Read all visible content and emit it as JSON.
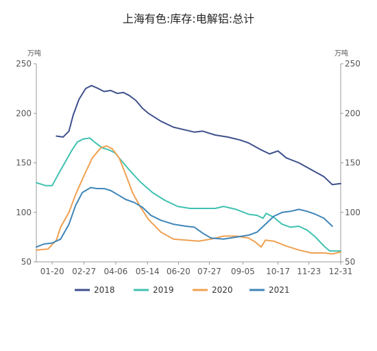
{
  "chart_data": {
    "type": "line",
    "title": "上海有色:库存:电解铝:总计",
    "y_unit_left": "万吨",
    "y_unit_right": "万吨",
    "ylim": [
      50,
      250
    ],
    "yticks": [
      50,
      100,
      150,
      200,
      250
    ],
    "x_day_range": [
      1,
      365
    ],
    "x_ticks": [
      "01-20",
      "02-27",
      "04-06",
      "05-14",
      "06-20",
      "07-27",
      "09-05",
      "10-17",
      "11-23",
      "12-31"
    ],
    "x_tick_days": [
      20,
      58,
      96,
      134,
      171,
      208,
      248,
      290,
      327,
      365
    ],
    "grid": false,
    "legend_position": "bottom",
    "colors": {
      "2018": "#3d4f8c",
      "2019": "#3fc1b0",
      "2020": "#f0a050",
      "2021": "#3d85b8"
    },
    "series": [
      {
        "name": "2018",
        "points": [
          [
            25,
            177
          ],
          [
            33,
            176
          ],
          [
            40,
            182
          ],
          [
            45,
            198
          ],
          [
            52,
            214
          ],
          [
            60,
            225
          ],
          [
            67,
            228
          ],
          [
            75,
            225
          ],
          [
            82,
            222
          ],
          [
            90,
            223
          ],
          [
            98,
            220
          ],
          [
            105,
            221
          ],
          [
            112,
            218
          ],
          [
            120,
            213
          ],
          [
            128,
            205
          ],
          [
            135,
            200
          ],
          [
            150,
            192
          ],
          [
            165,
            186
          ],
          [
            180,
            183
          ],
          [
            190,
            181
          ],
          [
            200,
            182
          ],
          [
            215,
            178
          ],
          [
            230,
            176
          ],
          [
            245,
            173
          ],
          [
            255,
            170
          ],
          [
            270,
            163
          ],
          [
            280,
            159
          ],
          [
            290,
            162
          ],
          [
            300,
            155
          ],
          [
            315,
            150
          ],
          [
            330,
            143
          ],
          [
            345,
            136
          ],
          [
            355,
            128
          ],
          [
            365,
            129
          ]
        ]
      },
      {
        "name": "2019",
        "points": [
          [
            1,
            130
          ],
          [
            12,
            127
          ],
          [
            20,
            127
          ],
          [
            27,
            138
          ],
          [
            35,
            150
          ],
          [
            43,
            162
          ],
          [
            50,
            171
          ],
          [
            57,
            174
          ],
          [
            65,
            175
          ],
          [
            72,
            170
          ],
          [
            80,
            165
          ],
          [
            88,
            163
          ],
          [
            95,
            160
          ],
          [
            103,
            152
          ],
          [
            112,
            143
          ],
          [
            125,
            131
          ],
          [
            140,
            120
          ],
          [
            155,
            112
          ],
          [
            170,
            106
          ],
          [
            185,
            104
          ],
          [
            200,
            104
          ],
          [
            215,
            104
          ],
          [
            225,
            106
          ],
          [
            240,
            103
          ],
          [
            255,
            98
          ],
          [
            265,
            97
          ],
          [
            272,
            94
          ],
          [
            276,
            99
          ],
          [
            285,
            95
          ],
          [
            295,
            88
          ],
          [
            305,
            85
          ],
          [
            315,
            86
          ],
          [
            325,
            82
          ],
          [
            335,
            75
          ],
          [
            345,
            66
          ],
          [
            352,
            61
          ],
          [
            365,
            61
          ]
        ]
      },
      {
        "name": "2020",
        "points": [
          [
            1,
            62
          ],
          [
            15,
            63
          ],
          [
            25,
            72
          ],
          [
            30,
            85
          ],
          [
            40,
            100
          ],
          [
            48,
            118
          ],
          [
            58,
            137
          ],
          [
            68,
            155
          ],
          [
            78,
            165
          ],
          [
            85,
            167
          ],
          [
            92,
            164
          ],
          [
            100,
            155
          ],
          [
            108,
            138
          ],
          [
            116,
            120
          ],
          [
            125,
            106
          ],
          [
            135,
            93
          ],
          [
            150,
            80
          ],
          [
            165,
            73
          ],
          [
            180,
            72
          ],
          [
            195,
            71
          ],
          [
            210,
            73
          ],
          [
            225,
            76
          ],
          [
            240,
            76
          ],
          [
            255,
            74
          ],
          [
            263,
            70
          ],
          [
            270,
            65
          ],
          [
            275,
            72
          ],
          [
            285,
            71
          ],
          [
            300,
            66
          ],
          [
            315,
            62
          ],
          [
            330,
            59
          ],
          [
            345,
            59
          ],
          [
            355,
            58
          ],
          [
            365,
            60
          ]
        ]
      },
      {
        "name": "2021",
        "points": [
          [
            1,
            65
          ],
          [
            10,
            68
          ],
          [
            20,
            69
          ],
          [
            30,
            73
          ],
          [
            40,
            88
          ],
          [
            48,
            107
          ],
          [
            56,
            120
          ],
          [
            66,
            125
          ],
          [
            74,
            124
          ],
          [
            82,
            124
          ],
          [
            90,
            122
          ],
          [
            98,
            118
          ],
          [
            108,
            113
          ],
          [
            118,
            110
          ],
          [
            128,
            105
          ],
          [
            138,
            97
          ],
          [
            150,
            92
          ],
          [
            165,
            88
          ],
          [
            180,
            86
          ],
          [
            190,
            85
          ],
          [
            200,
            79
          ],
          [
            210,
            74
          ],
          [
            225,
            73
          ],
          [
            240,
            75
          ],
          [
            255,
            77
          ],
          [
            265,
            80
          ],
          [
            275,
            88
          ],
          [
            285,
            96
          ],
          [
            295,
            100
          ],
          [
            305,
            101
          ],
          [
            315,
            103
          ],
          [
            325,
            101
          ],
          [
            335,
            98
          ],
          [
            345,
            94
          ],
          [
            355,
            86
          ]
        ]
      }
    ]
  }
}
